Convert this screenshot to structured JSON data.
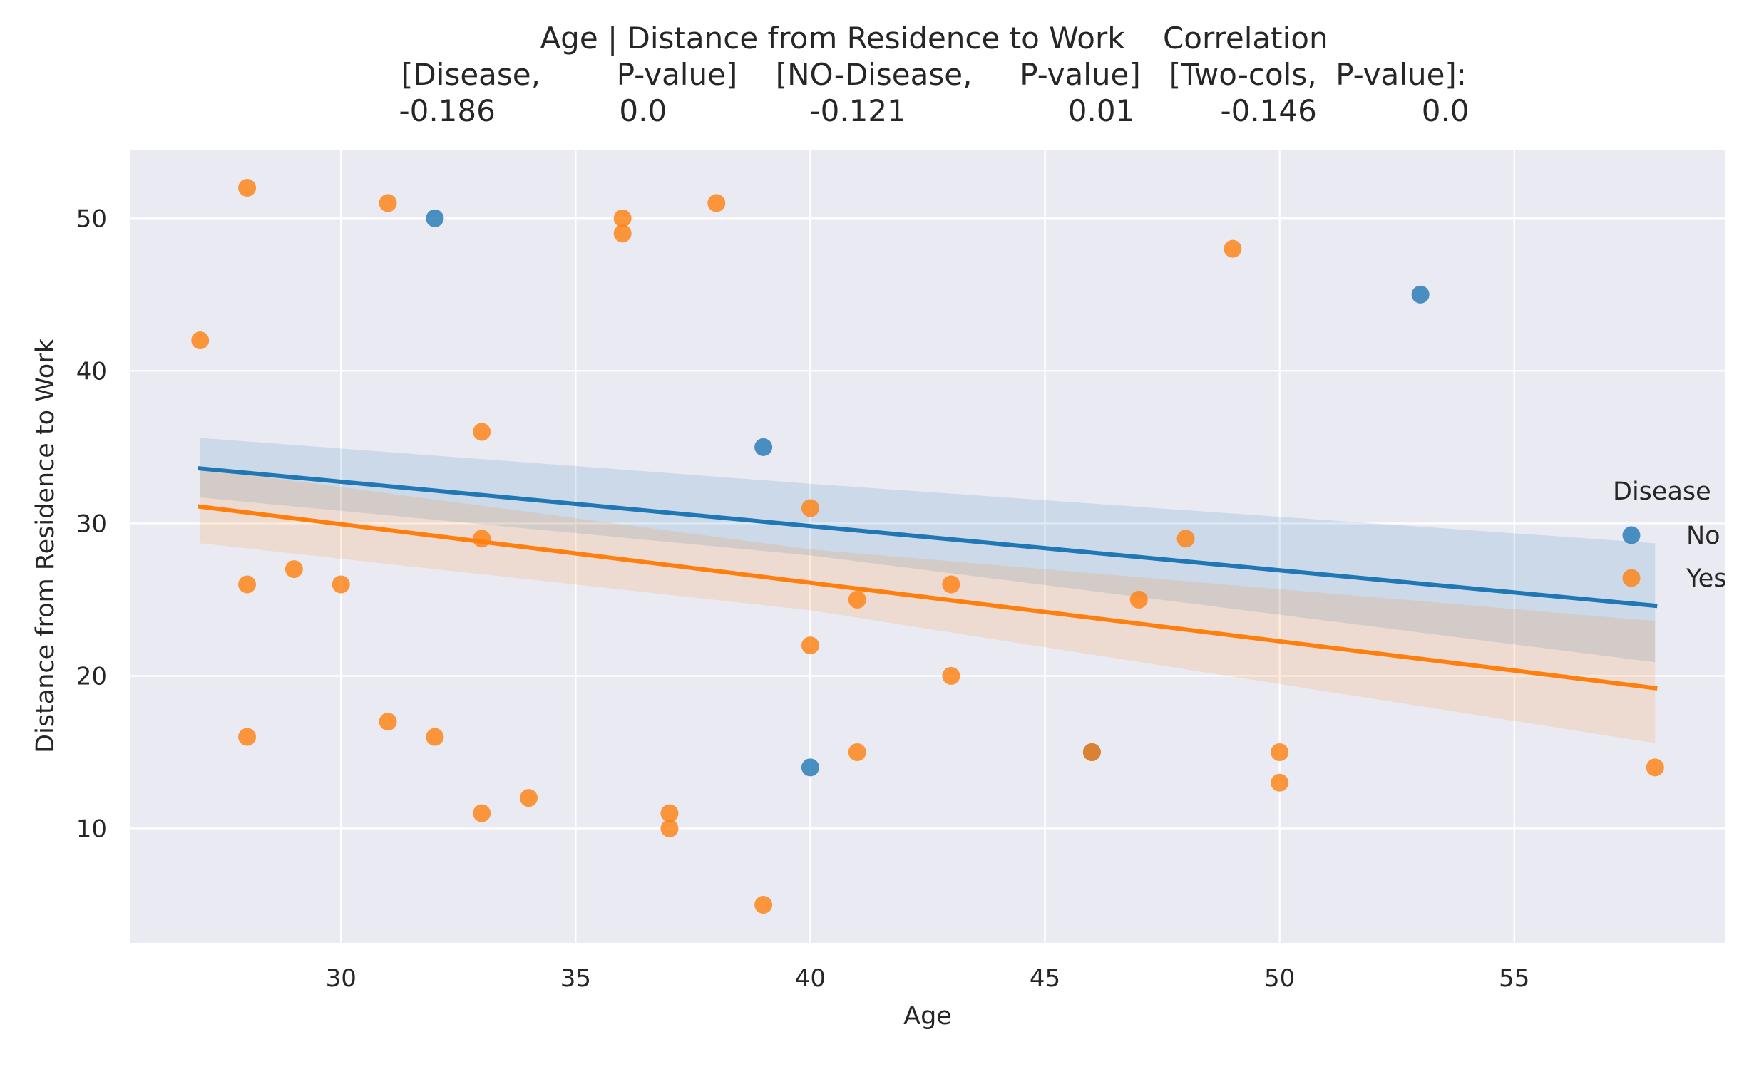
{
  "chart_data": {
    "type": "scatter",
    "title_lines": [
      "Age | Distance from Residence to Work    Correlation",
      "[Disease,        P-value]    [NO-Disease,     P-value]   [Two-cols,  P-value]:",
      "-0.186             0.0               -0.121                 0.01         -0.146           0.0"
    ],
    "xlabel": "Age",
    "ylabel": "Distance from Residence to Work",
    "xlim": [
      25.5,
      59.5
    ],
    "ylim": [
      2.5,
      54.5
    ],
    "xticks": [
      30,
      35,
      40,
      45,
      50,
      55
    ],
    "yticks": [
      10,
      20,
      30,
      40,
      50
    ],
    "grid": true,
    "legend": {
      "title": "Disease",
      "position": "center-right"
    },
    "series": [
      {
        "name": "No",
        "color": "#1f77b4",
        "points": [
          [
            32,
            50
          ],
          [
            39,
            35
          ],
          [
            53,
            45
          ],
          [
            40,
            14
          ],
          [
            46,
            15
          ]
        ],
        "regression": {
          "x": [
            27,
            58
          ],
          "y": [
            33.6,
            24.6
          ]
        },
        "ci_band": {
          "x": [
            27,
            40,
            58
          ],
          "upper": [
            35.6,
            32.6,
            28.7
          ],
          "lower": [
            31.7,
            27.9,
            20.9
          ]
        }
      },
      {
        "name": "Yes",
        "color": "#ff7f0e",
        "points": [
          [
            27,
            42
          ],
          [
            28,
            52
          ],
          [
            28,
            26
          ],
          [
            28,
            16
          ],
          [
            29,
            27
          ],
          [
            30,
            26
          ],
          [
            31,
            51
          ],
          [
            31,
            17
          ],
          [
            32,
            16
          ],
          [
            33,
            36
          ],
          [
            33,
            29
          ],
          [
            33,
            11
          ],
          [
            34,
            12
          ],
          [
            36,
            50
          ],
          [
            36,
            49
          ],
          [
            37,
            11
          ],
          [
            37,
            10
          ],
          [
            38,
            51
          ],
          [
            39,
            5
          ],
          [
            40,
            31
          ],
          [
            40,
            22
          ],
          [
            41,
            25
          ],
          [
            41,
            15
          ],
          [
            43,
            26
          ],
          [
            43,
            20
          ],
          [
            46,
            15
          ],
          [
            47,
            25
          ],
          [
            48,
            29
          ],
          [
            49,
            48
          ],
          [
            50,
            15
          ],
          [
            50,
            13
          ],
          [
            58,
            14
          ]
        ],
        "regression": {
          "x": [
            27,
            58
          ],
          "y": [
            31.1,
            19.2
          ]
        },
        "ci_band": {
          "x": [
            27,
            40,
            58
          ],
          "upper": [
            33.6,
            28.3,
            23.6
          ],
          "lower": [
            28.7,
            24.3,
            15.6
          ]
        }
      }
    ]
  }
}
